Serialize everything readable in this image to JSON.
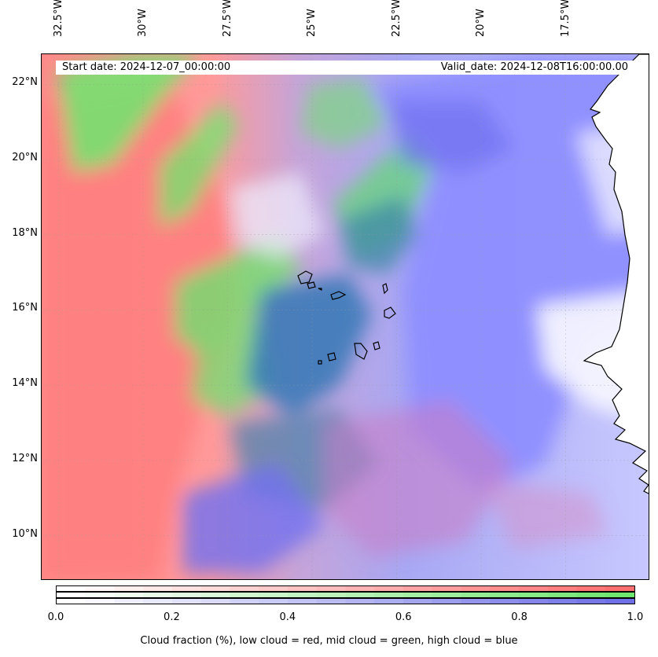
{
  "map": {
    "start_date": "Start date: 2024-12-07_00:00:00",
    "valid_date": "Valid_date: 2024-12-08T16:00:00.00",
    "lon_extent": [
      -33.0,
      -15.0
    ],
    "lat_extent": [
      8.8,
      22.8
    ],
    "lon_labels": [
      "32.5°W",
      "30°W",
      "27.5°W",
      "25°W",
      "22.5°W",
      "20°W",
      "17.5°W"
    ],
    "lon_values": [
      -32.5,
      -30.0,
      -27.5,
      -25.0,
      -22.5,
      -20.0,
      -17.5
    ],
    "lat_labels": [
      "22°N",
      "20°N",
      "18°N",
      "16°N",
      "14°N",
      "12°N",
      "10°N"
    ],
    "lat_values": [
      22,
      20,
      18,
      16,
      14,
      12,
      10
    ],
    "layers": {
      "low_cloud": "#ff8080",
      "mid_cloud": "#80e680",
      "high_cloud": "#8080ff"
    },
    "features": [
      "coastline",
      "cape-verde-islands"
    ]
  },
  "colorbar": {
    "ticks": [
      "0.0",
      "0.2",
      "0.4",
      "0.6",
      "0.8",
      "1.0"
    ],
    "tick_values": [
      0.0,
      0.2,
      0.4,
      0.6,
      0.8,
      1.0
    ],
    "range": [
      0.0,
      1.0
    ],
    "bars": [
      {
        "layer": "low",
        "color": "#ff6f6f"
      },
      {
        "layer": "mid",
        "color": "#6fe66f"
      },
      {
        "layer": "high",
        "color": "#6f6fe6"
      }
    ],
    "label": "Cloud fraction (%), low cloud = red, mid cloud = green, high cloud = blue"
  }
}
